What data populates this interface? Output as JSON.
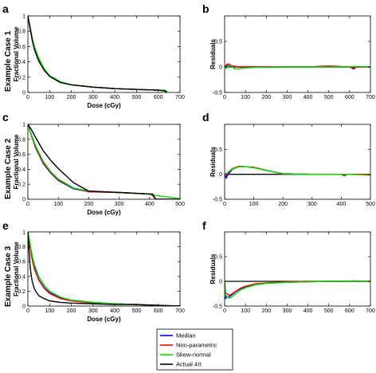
{
  "figure": {
    "case_labels": [
      "Example Case 1",
      "Example Case 2",
      "Example Case 3"
    ],
    "legend": [
      {
        "label": "Median",
        "color": "#0000ff"
      },
      {
        "label": "Non-parametric",
        "color": "#ff0000"
      },
      {
        "label": "Skew-normal",
        "color": "#00dd00"
      },
      {
        "label": "Actual 4π",
        "color": "#000000"
      }
    ]
  },
  "chart_data": [
    {
      "id": "a",
      "panel_letter": "a",
      "type": "line",
      "xlabel": "Dose (cGy)",
      "ylabel": "Fractional Volume",
      "xlim": [
        0,
        700
      ],
      "ylim": [
        0,
        1
      ],
      "xticks": [
        0,
        100,
        200,
        300,
        400,
        500,
        600,
        700
      ],
      "yticks": [
        0,
        0.2,
        0.4,
        0.6,
        0.8,
        1
      ],
      "x": [
        0,
        10,
        20,
        30,
        50,
        75,
        100,
        150,
        200,
        300,
        400,
        500,
        600,
        630,
        640
      ],
      "series": [
        {
          "name": "Median",
          "color": "#0000ff",
          "values": [
            1.0,
            0.85,
            0.7,
            0.58,
            0.42,
            0.29,
            0.21,
            0.13,
            0.1,
            0.07,
            0.05,
            0.04,
            0.03,
            0.02,
            0.0
          ]
        },
        {
          "name": "Non-parametric",
          "color": "#ff0000",
          "values": [
            1.0,
            0.86,
            0.71,
            0.59,
            0.43,
            0.3,
            0.21,
            0.13,
            0.1,
            0.07,
            0.05,
            0.04,
            0.03,
            0.02,
            0.0
          ]
        },
        {
          "name": "Skew-normal",
          "color": "#00dd00",
          "values": [
            1.0,
            0.84,
            0.7,
            0.6,
            0.45,
            0.31,
            0.22,
            0.14,
            0.1,
            0.07,
            0.05,
            0.04,
            0.03,
            0.03,
            0.02
          ]
        },
        {
          "name": "Actual 4π",
          "color": "#000000",
          "values": [
            1.0,
            0.84,
            0.68,
            0.56,
            0.41,
            0.29,
            0.21,
            0.13,
            0.1,
            0.07,
            0.05,
            0.04,
            0.03,
            0.02,
            0.0
          ]
        }
      ]
    },
    {
      "id": "b",
      "panel_letter": "b",
      "type": "line",
      "xlabel": "",
      "ylabel": "Residuals",
      "xlim": [
        0,
        700
      ],
      "ylim": [
        -0.5,
        1
      ],
      "xticks": [
        0,
        100,
        200,
        300,
        400,
        500,
        600,
        700
      ],
      "yticks": [
        -0.5,
        0,
        0.5
      ],
      "x": [
        0,
        10,
        20,
        30,
        50,
        75,
        100,
        150,
        200,
        300,
        400,
        500,
        600,
        620,
        630,
        700
      ],
      "zero_line": true,
      "series": [
        {
          "name": "Median",
          "color": "#0000ff",
          "values": [
            0,
            0.03,
            0.03,
            0.02,
            0.01,
            0.0,
            0.0,
            0.0,
            0.0,
            0.0,
            0.0,
            0.0,
            0.0,
            -0.04,
            0.0,
            0.0
          ]
        },
        {
          "name": "Non-parametric",
          "color": "#ff0000",
          "values": [
            0,
            0.05,
            0.06,
            0.03,
            0.01,
            0.0,
            0.0,
            0.0,
            0.0,
            0.0,
            0.0,
            0.02,
            0.0,
            -0.02,
            0.0,
            0.0
          ]
        },
        {
          "name": "Skew-normal",
          "color": "#00dd00",
          "values": [
            0,
            -0.03,
            0.03,
            0.02,
            -0.04,
            -0.03,
            -0.02,
            -0.01,
            -0.01,
            0.0,
            0.0,
            0.0,
            0.0,
            0.01,
            0.01,
            0.0
          ]
        }
      ]
    },
    {
      "id": "c",
      "panel_letter": "c",
      "type": "line",
      "xlabel": "Dose (cGy)",
      "ylabel": "Fractional Volume",
      "xlim": [
        0,
        500
      ],
      "ylim": [
        0,
        1
      ],
      "xticks": [
        0,
        100,
        200,
        300,
        400,
        500
      ],
      "yticks": [
        0,
        0.2,
        0.4,
        0.6,
        0.8,
        1
      ],
      "x": [
        0,
        10,
        25,
        50,
        75,
        100,
        150,
        200,
        300,
        400,
        410,
        420,
        500
      ],
      "series": [
        {
          "name": "Median",
          "color": "#0000ff",
          "values": [
            1.0,
            0.87,
            0.69,
            0.48,
            0.35,
            0.25,
            0.14,
            0.1,
            0.09,
            0.07,
            0.05,
            0.0,
            0.0
          ]
        },
        {
          "name": "Non-parametric",
          "color": "#ff0000",
          "values": [
            1.0,
            0.87,
            0.7,
            0.49,
            0.36,
            0.26,
            0.15,
            0.1,
            0.09,
            0.07,
            0.05,
            0.0,
            0.0
          ]
        },
        {
          "name": "Skew-normal",
          "color": "#00dd00",
          "values": [
            1.0,
            0.88,
            0.72,
            0.51,
            0.37,
            0.27,
            0.15,
            0.11,
            0.09,
            0.07,
            0.06,
            0.05,
            0.01
          ]
        },
        {
          "name": "Actual 4π",
          "color": "#000000",
          "values": [
            1.0,
            0.94,
            0.83,
            0.65,
            0.52,
            0.41,
            0.22,
            0.11,
            0.09,
            0.07,
            0.07,
            0.0,
            0.0
          ]
        }
      ]
    },
    {
      "id": "d",
      "panel_letter": "d",
      "type": "line",
      "xlabel": "",
      "ylabel": "Residuals",
      "xlim": [
        0,
        500
      ],
      "ylim": [
        -0.5,
        1
      ],
      "xticks": [
        0,
        100,
        200,
        300,
        400,
        500
      ],
      "yticks": [
        -0.5,
        0,
        0.5
      ],
      "x": [
        0,
        5,
        10,
        25,
        50,
        75,
        100,
        150,
        200,
        300,
        400,
        410,
        420,
        500
      ],
      "zero_line": true,
      "series": [
        {
          "name": "Median",
          "color": "#0000ff",
          "values": [
            0,
            -0.08,
            -0.02,
            0.09,
            0.16,
            0.15,
            0.14,
            0.07,
            0.01,
            0.0,
            0.0,
            -0.03,
            0.0,
            0.0
          ]
        },
        {
          "name": "Non-parametric",
          "color": "#ff0000",
          "values": [
            0,
            -0.03,
            0.02,
            0.11,
            0.16,
            0.15,
            0.14,
            0.07,
            0.01,
            0.0,
            0.0,
            -0.02,
            0.0,
            0.0
          ]
        },
        {
          "name": "Skew-normal",
          "color": "#00dd00",
          "values": [
            0,
            0.0,
            0.04,
            0.1,
            0.15,
            0.15,
            0.13,
            0.07,
            0.01,
            0.0,
            0.0,
            0.0,
            0.0,
            -0.02
          ]
        }
      ]
    },
    {
      "id": "e",
      "panel_letter": "e",
      "type": "line",
      "xlabel": "Dose (cGy)",
      "ylabel": "Fractional Volume",
      "xlim": [
        0,
        700
      ],
      "ylim": [
        0,
        1
      ],
      "xticks": [
        0,
        100,
        200,
        300,
        400,
        500,
        600,
        700
      ],
      "yticks": [
        0,
        0.2,
        0.4,
        0.6,
        0.8,
        1
      ],
      "x": [
        0,
        5,
        10,
        15,
        20,
        30,
        50,
        75,
        100,
        150,
        200,
        300,
        400,
        500,
        600,
        700
      ],
      "series": [
        {
          "name": "Median",
          "color": "#0000ff",
          "values": [
            1.0,
            0.92,
            0.82,
            0.72,
            0.64,
            0.52,
            0.36,
            0.25,
            0.18,
            0.11,
            0.08,
            0.05,
            0.03,
            0.02,
            0.0,
            0.0
          ]
        },
        {
          "name": "Non-parametric",
          "color": "#ff0000",
          "values": [
            1.0,
            0.9,
            0.8,
            0.7,
            0.62,
            0.5,
            0.35,
            0.24,
            0.17,
            0.1,
            0.07,
            0.04,
            0.03,
            0.02,
            0.0,
            0.0
          ]
        },
        {
          "name": "Skew-normal",
          "color": "#00dd00",
          "values": [
            1.0,
            0.93,
            0.85,
            0.76,
            0.68,
            0.56,
            0.4,
            0.28,
            0.2,
            0.12,
            0.08,
            0.05,
            0.03,
            0.02,
            0.01,
            0.0
          ]
        },
        {
          "name": "Actual 4π",
          "color": "#000000",
          "values": [
            1.0,
            0.75,
            0.55,
            0.42,
            0.33,
            0.23,
            0.14,
            0.1,
            0.07,
            0.05,
            0.04,
            0.03,
            0.02,
            0.02,
            0.01,
            0.0
          ]
        }
      ]
    },
    {
      "id": "f",
      "panel_letter": "f",
      "type": "line",
      "xlabel": "",
      "ylabel": "Residuals",
      "xlim": [
        0,
        700
      ],
      "ylim": [
        -0.5,
        1
      ],
      "xticks": [
        0,
        100,
        200,
        300,
        400,
        500,
        600,
        700
      ],
      "yticks": [
        -0.5,
        0,
        0.5
      ],
      "x": [
        0,
        5,
        10,
        20,
        30,
        50,
        75,
        100,
        150,
        200,
        300,
        400,
        500,
        600,
        610,
        700
      ],
      "zero_line": true,
      "series": [
        {
          "name": "Median",
          "color": "#0000ff",
          "values": [
            0,
            -0.35,
            -0.3,
            -0.32,
            -0.29,
            -0.22,
            -0.15,
            -0.11,
            -0.06,
            -0.04,
            -0.02,
            -0.01,
            0.0,
            0.0,
            0.01,
            0.0
          ]
        },
        {
          "name": "Non-parametric",
          "color": "#ff0000",
          "values": [
            0,
            -0.25,
            -0.24,
            -0.28,
            -0.27,
            -0.21,
            -0.14,
            -0.1,
            -0.05,
            -0.03,
            -0.01,
            0.0,
            0.0,
            0.0,
            0.0,
            0.0
          ]
        },
        {
          "name": "Skew-normal",
          "color": "#00dd00",
          "values": [
            0,
            -0.3,
            -0.29,
            -0.34,
            -0.33,
            -0.26,
            -0.18,
            -0.13,
            -0.07,
            -0.04,
            -0.02,
            -0.01,
            0.0,
            0.0,
            0.0,
            0.0
          ]
        }
      ]
    }
  ]
}
